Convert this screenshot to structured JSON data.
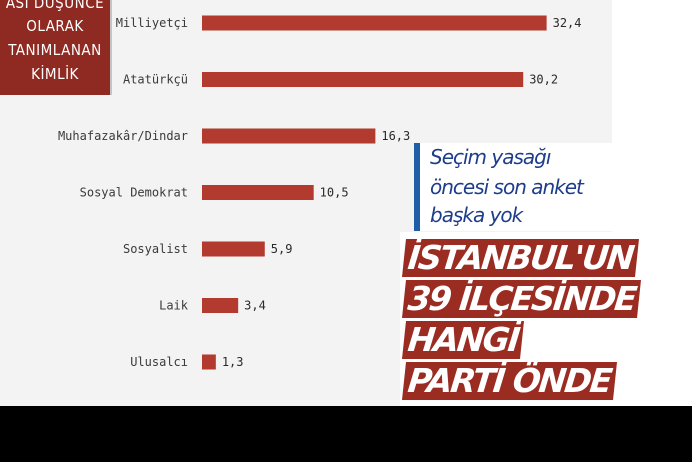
{
  "badge": {
    "lines": [
      "ASI DÜŞÜNCE",
      "OLARAK",
      "TANIMLANAN",
      "KİMLİK"
    ]
  },
  "note": {
    "lines": [
      "Seçim yasağı",
      "öncesi son anket",
      "başka yok"
    ]
  },
  "headline": {
    "lines": [
      "İSTANBUL'UN",
      "39 İLÇESİNDE",
      "HANGİ",
      "PARTİ ÖNDE"
    ]
  },
  "colors": {
    "bar": "#b23a2e",
    "badge": "#8e2a22",
    "note_accent": "#1e5fa8",
    "note_text": "#1e3c8c",
    "headline_bg": "#9a2c22"
  },
  "chart_data": {
    "type": "bar",
    "orientation": "horizontal",
    "categories": [
      "Milliyetçi",
      "Atatürkçü",
      "Muhafazakâr/Dindar",
      "Sosyal Demokrat",
      "Sosyalist",
      "Laik",
      "Ulusalcı"
    ],
    "values": [
      32.4,
      30.2,
      16.3,
      10.5,
      5.9,
      3.4,
      1.3
    ],
    "value_labels": [
      "32,4",
      "30,2",
      "16,3",
      "10,5",
      "5,9",
      "3,4",
      "1,3"
    ],
    "xlim": [
      0,
      33
    ],
    "grid": false
  }
}
